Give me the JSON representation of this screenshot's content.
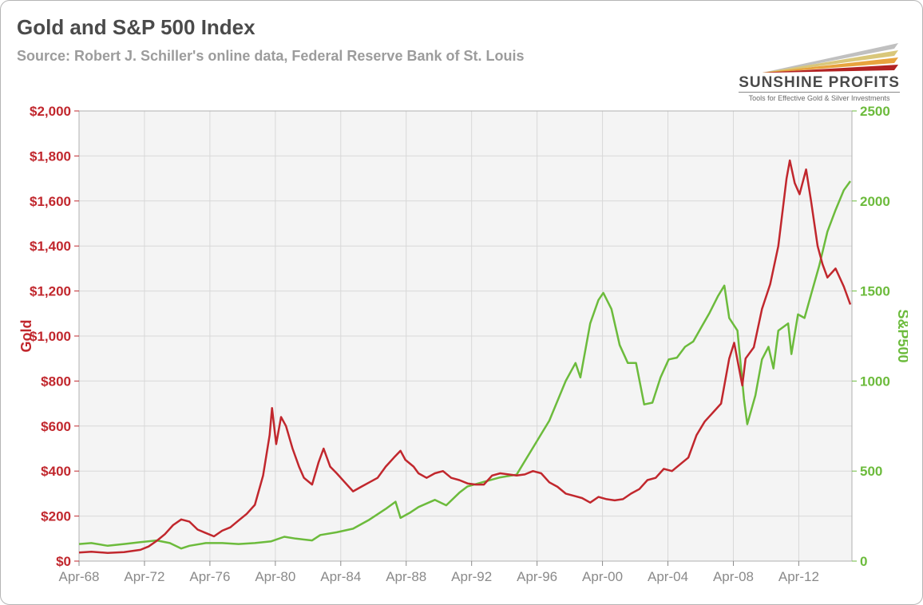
{
  "title": "Gold and S&P 500 Index",
  "subtitle": "Source: Robert J. Schiller's online data, Federal Reserve Bank of St. Louis",
  "logo": {
    "name": "SUNSHINE PROFITS",
    "tagline": "Tools for Effective Gold & Silver Investments",
    "ray_colors": [
      "#b22222",
      "#e8a33d",
      "#d9c77a",
      "#c0c0c0"
    ]
  },
  "chart": {
    "type": "line-dual-axis",
    "background_color": "#f4f4f4",
    "grid_color": "#d8d8d8",
    "border_color": "#b0b0b0",
    "line_width": 2.5,
    "x": {
      "domain": [
        1968.25,
        2015.5
      ],
      "ticks": [
        1968.25,
        1972.25,
        1976.25,
        1980.25,
        1984.25,
        1988.25,
        1992.25,
        1996.25,
        2000.25,
        2004.25,
        2008.25,
        2012.25
      ],
      "tick_labels": [
        "Apr-68",
        "Apr-72",
        "Apr-76",
        "Apr-80",
        "Apr-84",
        "Apr-88",
        "Apr-92",
        "Apr-96",
        "Apr-00",
        "Apr-04",
        "Apr-08",
        "Apr-12"
      ],
      "tick_color": "#8a8a8a",
      "tick_fontsize": 17
    },
    "y_left": {
      "label": "Gold",
      "color": "#c1272d",
      "domain": [
        0,
        2000
      ],
      "ticks": [
        0,
        200,
        400,
        600,
        800,
        1000,
        1200,
        1400,
        1600,
        1800,
        2000
      ],
      "tick_labels": [
        "$0",
        "$200",
        "$400",
        "$600",
        "$800",
        "$1,000",
        "$1,200",
        "$1,400",
        "$1,600",
        "$1,800",
        "$2,000"
      ],
      "tick_fontsize": 17
    },
    "y_right": {
      "label": "S&P500",
      "color": "#6cbb3c",
      "domain": [
        0,
        2500
      ],
      "ticks": [
        0,
        500,
        1000,
        1500,
        2000,
        2500
      ],
      "tick_labels": [
        "0",
        "500",
        "1000",
        "1500",
        "2000",
        "2500"
      ],
      "tick_fontsize": 17
    },
    "series": {
      "gold": {
        "axis": "left",
        "color": "#c1272d",
        "points": [
          [
            1968.25,
            38
          ],
          [
            1969,
            42
          ],
          [
            1970,
            36
          ],
          [
            1971,
            40
          ],
          [
            1972,
            50
          ],
          [
            1972.5,
            65
          ],
          [
            1973,
            90
          ],
          [
            1973.5,
            120
          ],
          [
            1974,
            160
          ],
          [
            1974.5,
            185
          ],
          [
            1975,
            175
          ],
          [
            1975.5,
            140
          ],
          [
            1976,
            125
          ],
          [
            1976.5,
            110
          ],
          [
            1977,
            135
          ],
          [
            1977.5,
            150
          ],
          [
            1978,
            180
          ],
          [
            1978.5,
            210
          ],
          [
            1979,
            250
          ],
          [
            1979.5,
            380
          ],
          [
            1979.9,
            560
          ],
          [
            1980.05,
            680
          ],
          [
            1980.3,
            520
          ],
          [
            1980.6,
            640
          ],
          [
            1980.9,
            600
          ],
          [
            1981.3,
            500
          ],
          [
            1981.7,
            420
          ],
          [
            1982,
            370
          ],
          [
            1982.5,
            340
          ],
          [
            1982.9,
            440
          ],
          [
            1983.2,
            500
          ],
          [
            1983.6,
            420
          ],
          [
            1984,
            390
          ],
          [
            1984.5,
            350
          ],
          [
            1985,
            310
          ],
          [
            1985.5,
            330
          ],
          [
            1986,
            350
          ],
          [
            1986.5,
            370
          ],
          [
            1987,
            420
          ],
          [
            1987.5,
            460
          ],
          [
            1987.9,
            490
          ],
          [
            1988.2,
            450
          ],
          [
            1988.7,
            420
          ],
          [
            1989,
            390
          ],
          [
            1989.5,
            370
          ],
          [
            1990,
            390
          ],
          [
            1990.5,
            400
          ],
          [
            1991,
            370
          ],
          [
            1991.5,
            360
          ],
          [
            1992,
            345
          ],
          [
            1992.5,
            340
          ],
          [
            1993,
            340
          ],
          [
            1993.5,
            380
          ],
          [
            1994,
            390
          ],
          [
            1994.5,
            385
          ],
          [
            1995,
            380
          ],
          [
            1995.5,
            385
          ],
          [
            1996,
            400
          ],
          [
            1996.5,
            390
          ],
          [
            1997,
            350
          ],
          [
            1997.5,
            330
          ],
          [
            1998,
            300
          ],
          [
            1998.5,
            290
          ],
          [
            1999,
            280
          ],
          [
            1999.5,
            260
          ],
          [
            2000,
            285
          ],
          [
            2000.5,
            275
          ],
          [
            2001,
            270
          ],
          [
            2001.5,
            275
          ],
          [
            2002,
            300
          ],
          [
            2002.5,
            320
          ],
          [
            2003,
            360
          ],
          [
            2003.5,
            370
          ],
          [
            2004,
            410
          ],
          [
            2004.5,
            400
          ],
          [
            2005,
            430
          ],
          [
            2005.5,
            460
          ],
          [
            2006,
            560
          ],
          [
            2006.5,
            620
          ],
          [
            2007,
            660
          ],
          [
            2007.5,
            700
          ],
          [
            2008,
            900
          ],
          [
            2008.3,
            970
          ],
          [
            2008.8,
            780
          ],
          [
            2009,
            900
          ],
          [
            2009.5,
            950
          ],
          [
            2010,
            1120
          ],
          [
            2010.5,
            1230
          ],
          [
            2011,
            1400
          ],
          [
            2011.5,
            1700
          ],
          [
            2011.7,
            1780
          ],
          [
            2012,
            1680
          ],
          [
            2012.3,
            1630
          ],
          [
            2012.7,
            1740
          ],
          [
            2013,
            1600
          ],
          [
            2013.4,
            1400
          ],
          [
            2013.7,
            1320
          ],
          [
            2014,
            1260
          ],
          [
            2014.5,
            1300
          ],
          [
            2015,
            1220
          ],
          [
            2015.4,
            1140
          ]
        ]
      },
      "sp500": {
        "axis": "right",
        "color": "#6cbb3c",
        "points": [
          [
            1968.25,
            95
          ],
          [
            1969,
            100
          ],
          [
            1970,
            85
          ],
          [
            1971,
            95
          ],
          [
            1972,
            105
          ],
          [
            1973,
            115
          ],
          [
            1973.8,
            100
          ],
          [
            1974.5,
            70
          ],
          [
            1975,
            85
          ],
          [
            1976,
            100
          ],
          [
            1977,
            100
          ],
          [
            1978,
            95
          ],
          [
            1979,
            100
          ],
          [
            1980,
            110
          ],
          [
            1980.8,
            135
          ],
          [
            1981.5,
            125
          ],
          [
            1982.5,
            115
          ],
          [
            1983,
            145
          ],
          [
            1984,
            160
          ],
          [
            1985,
            180
          ],
          [
            1986,
            230
          ],
          [
            1987,
            290
          ],
          [
            1987.6,
            330
          ],
          [
            1987.9,
            240
          ],
          [
            1988.5,
            270
          ],
          [
            1989,
            300
          ],
          [
            1990,
            340
          ],
          [
            1990.7,
            310
          ],
          [
            1991.5,
            380
          ],
          [
            1992,
            415
          ],
          [
            1993,
            440
          ],
          [
            1994,
            465
          ],
          [
            1995,
            480
          ],
          [
            1996,
            630
          ],
          [
            1997,
            780
          ],
          [
            1998,
            1000
          ],
          [
            1998.6,
            1100
          ],
          [
            1998.9,
            1020
          ],
          [
            1999.5,
            1320
          ],
          [
            2000,
            1450
          ],
          [
            2000.3,
            1490
          ],
          [
            2000.8,
            1400
          ],
          [
            2001.3,
            1200
          ],
          [
            2001.8,
            1100
          ],
          [
            2002.3,
            1100
          ],
          [
            2002.8,
            870
          ],
          [
            2003.3,
            880
          ],
          [
            2003.8,
            1020
          ],
          [
            2004.3,
            1120
          ],
          [
            2004.8,
            1130
          ],
          [
            2005.3,
            1190
          ],
          [
            2005.8,
            1220
          ],
          [
            2006.3,
            1300
          ],
          [
            2006.8,
            1380
          ],
          [
            2007.3,
            1470
          ],
          [
            2007.7,
            1530
          ],
          [
            2008,
            1350
          ],
          [
            2008.5,
            1280
          ],
          [
            2008.9,
            900
          ],
          [
            2009.1,
            760
          ],
          [
            2009.6,
            920
          ],
          [
            2010,
            1120
          ],
          [
            2010.4,
            1190
          ],
          [
            2010.7,
            1070
          ],
          [
            2011,
            1280
          ],
          [
            2011.6,
            1320
          ],
          [
            2011.8,
            1150
          ],
          [
            2012.2,
            1370
          ],
          [
            2012.6,
            1350
          ],
          [
            2013,
            1480
          ],
          [
            2013.5,
            1640
          ],
          [
            2014,
            1830
          ],
          [
            2014.5,
            1950
          ],
          [
            2015,
            2060
          ],
          [
            2015.4,
            2110
          ]
        ]
      }
    }
  }
}
